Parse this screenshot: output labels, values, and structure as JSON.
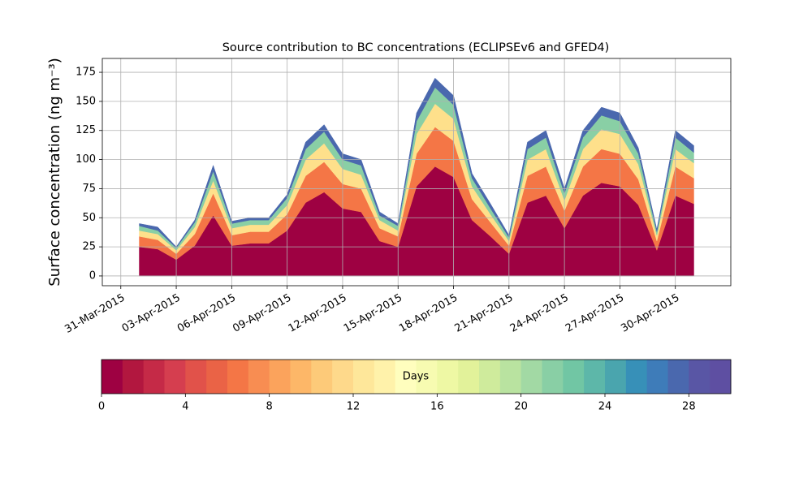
{
  "chart_data": {
    "type": "stacked_area",
    "title": "Source contribution to BC concentrations (ECLIPSEv6 and GFED4)",
    "ylabel": "Surface concentration (ng m⁻³)",
    "x": [
      "01-Apr-2015",
      "02-Apr-2015",
      "03-Apr-2015",
      "04-Apr-2015",
      "05-Apr-2015",
      "06-Apr-2015",
      "07-Apr-2015",
      "08-Apr-2015",
      "09-Apr-2015",
      "10-Apr-2015",
      "11-Apr-2015",
      "12-Apr-2015",
      "13-Apr-2015",
      "14-Apr-2015",
      "15-Apr-2015",
      "16-Apr-2015",
      "17-Apr-2015",
      "18-Apr-2015",
      "19-Apr-2015",
      "20-Apr-2015",
      "21-Apr-2015",
      "22-Apr-2015",
      "23-Apr-2015",
      "24-Apr-2015",
      "25-Apr-2015",
      "26-Apr-2015",
      "27-Apr-2015",
      "28-Apr-2015",
      "29-Apr-2015",
      "30-Apr-2015",
      "01-May-2015"
    ],
    "series": [
      {
        "color": "#9e0142",
        "values": [
          25,
          23,
          14,
          26,
          52,
          26,
          28,
          28,
          39,
          63,
          72,
          58,
          55,
          30,
          25,
          77,
          94,
          85,
          48,
          34,
          19,
          63,
          69,
          41,
          69,
          80,
          77,
          61,
          22,
          69,
          62
        ]
      },
      {
        "color": "#f47646",
        "values": [
          9,
          8,
          5,
          10,
          19,
          9,
          10,
          10,
          14,
          23,
          26,
          21,
          20,
          11,
          9,
          28,
          34,
          31,
          18,
          12,
          7,
          23,
          25,
          15,
          25,
          29,
          28,
          22,
          8,
          25,
          22
        ]
      },
      {
        "color": "#fee08b",
        "values": [
          5,
          5,
          3,
          6,
          11,
          6,
          6,
          6,
          8,
          14,
          16,
          13,
          12,
          7,
          5,
          17,
          20,
          19,
          11,
          7,
          4,
          14,
          15,
          9,
          15,
          17,
          17,
          13,
          5,
          15,
          13
        ]
      },
      {
        "color": "#89cfa5",
        "values": [
          4,
          3,
          2,
          4,
          8,
          4,
          4,
          4,
          6,
          9,
          10,
          8,
          8,
          4,
          4,
          11,
          14,
          12,
          7,
          5,
          3,
          9,
          10,
          6,
          10,
          12,
          11,
          9,
          3,
          10,
          9
        ]
      },
      {
        "color": "#4a68ae",
        "values": [
          2,
          3,
          1,
          2,
          5,
          2,
          2,
          2,
          3,
          6,
          6,
          5,
          5,
          3,
          2,
          7,
          8,
          8,
          4,
          4,
          2,
          6,
          6,
          4,
          6,
          7,
          7,
          5,
          2,
          6,
          6
        ]
      }
    ],
    "xlim": [
      "30-Mar-2015",
      "03-May-2015"
    ],
    "xticks": [
      "31-Mar-2015",
      "03-Apr-2015",
      "06-Apr-2015",
      "09-Apr-2015",
      "12-Apr-2015",
      "15-Apr-2015",
      "18-Apr-2015",
      "21-Apr-2015",
      "24-Apr-2015",
      "27-Apr-2015",
      "30-Apr-2015"
    ],
    "ylim": [
      -8.4,
      186.9
    ],
    "yticks": [
      0,
      25,
      50,
      75,
      100,
      125,
      150,
      175
    ],
    "grid": true,
    "colorbar": {
      "label": "Days",
      "lim": [
        0,
        30
      ],
      "ticks": [
        0,
        4,
        8,
        12,
        16,
        20,
        24,
        28
      ],
      "colors": [
        "#9e0142",
        "#b2173f",
        "#c52a47",
        "#d53e4f",
        "#e1524a",
        "#ea6346",
        "#f47646",
        "#f88d52",
        "#fba35c",
        "#fdb768",
        "#fdca79",
        "#fed98b",
        "#fee79a",
        "#fff2aa",
        "#fffebe",
        "#f7fbb1",
        "#eef8a4",
        "#e2f29a",
        "#cfeb9c",
        "#b9e3a0",
        "#a2d9a4",
        "#89cfa5",
        "#71c6a4",
        "#5db7a9",
        "#4aa5ae",
        "#3790b8",
        "#3e7cb9",
        "#4a68ae",
        "#5956a5",
        "#5e4fa2"
      ]
    }
  }
}
